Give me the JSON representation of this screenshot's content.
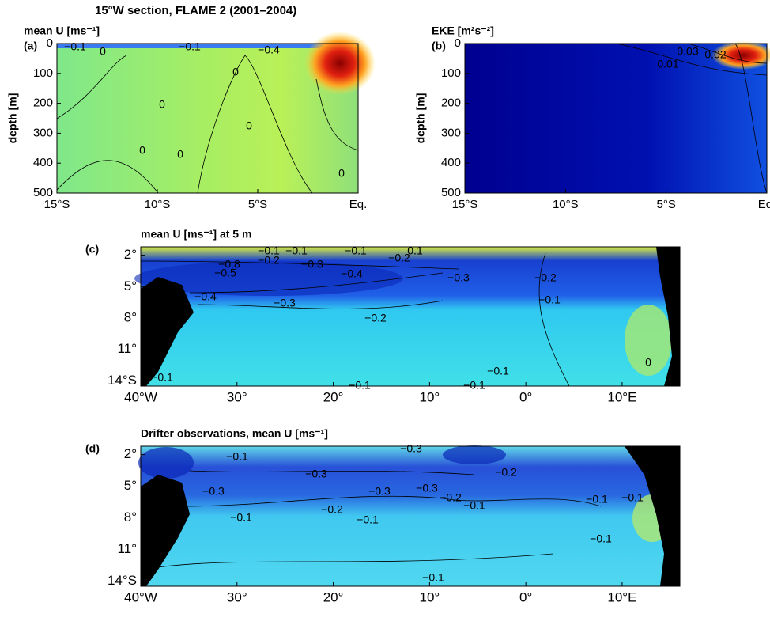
{
  "suptitle": "15°W section, FLAME 2 (2001–2004)",
  "chart_data": [
    {
      "type": "contour",
      "panel": "(a)",
      "title": "mean U [ms⁻¹]",
      "ylabel": "depth [m]",
      "xlim": [
        -15,
        0
      ],
      "xticks": [
        {
          "value": -15,
          "label": "15°S"
        },
        {
          "value": -10,
          "label": "10°S"
        },
        {
          "value": -5,
          "label": "5°S"
        },
        {
          "value": 0,
          "label": "Eq."
        }
      ],
      "ylim": [
        0,
        500
      ],
      "yticks": [
        0,
        100,
        200,
        300,
        400,
        500
      ],
      "contour_labels": [
        "−0.1",
        "0",
        "−0.1",
        "−0.4",
        "0",
        "0",
        "0",
        "0",
        "0",
        "0"
      ]
    },
    {
      "type": "contour",
      "panel": "(b)",
      "title": "EKE [m²s⁻²]",
      "ylabel": "depth [m]",
      "xlim": [
        -15,
        0
      ],
      "xticks": [
        {
          "value": -15,
          "label": "15°S"
        },
        {
          "value": -10,
          "label": "10°S"
        },
        {
          "value": -5,
          "label": "5°S"
        },
        {
          "value": 0,
          "label": "Eq."
        }
      ],
      "ylim": [
        0,
        500
      ],
      "yticks": [
        0,
        100,
        200,
        300,
        400,
        500
      ],
      "contour_labels": [
        "0.03",
        "0.02",
        "0.01"
      ]
    },
    {
      "type": "map",
      "panel": "(c)",
      "title": "mean U [ms⁻¹] at 5 m",
      "xlim": [
        -40,
        16
      ],
      "xticks": [
        {
          "value": -40,
          "label": "40°W"
        },
        {
          "value": -30,
          "label": "30°"
        },
        {
          "value": -20,
          "label": "20°"
        },
        {
          "value": -10,
          "label": "10°"
        },
        {
          "value": 0,
          "label": "0°"
        },
        {
          "value": 10,
          "label": "10°E"
        }
      ],
      "ylim": [
        -1.2,
        -14.5
      ],
      "yticks": [
        {
          "value": -2,
          "label": "2°"
        },
        {
          "value": -5,
          "label": "5°"
        },
        {
          "value": -8,
          "label": "8°"
        },
        {
          "value": -11,
          "label": "11°"
        },
        {
          "value": -14,
          "label": "14°S"
        }
      ],
      "contour_labels": [
        "−0.1",
        "−0.1",
        "−0.1",
        "0.1",
        "−0.8",
        "−0.2",
        "−0.3",
        "−0.2",
        "−0.5",
        "−0.4",
        "−0.3",
        "−0.2",
        "−0.4",
        "−0.3",
        "−0.2",
        "−0.1",
        "−0.1",
        "−0.1",
        "−0.1",
        "0",
        "−0.1"
      ]
    },
    {
      "type": "map",
      "panel": "(d)",
      "title": "Drifter observations, mean U [ms⁻¹]",
      "xlim": [
        -40,
        16
      ],
      "xticks": [
        {
          "value": -40,
          "label": "40°W"
        },
        {
          "value": -30,
          "label": "30°"
        },
        {
          "value": -20,
          "label": "20°"
        },
        {
          "value": -10,
          "label": "10°"
        },
        {
          "value": 0,
          "label": "0°"
        },
        {
          "value": 10,
          "label": "10°E"
        }
      ],
      "ylim": [
        -1.2,
        -14.5
      ],
      "yticks": [
        {
          "value": -2,
          "label": "2°"
        },
        {
          "value": -5,
          "label": "5°"
        },
        {
          "value": -8,
          "label": "8°"
        },
        {
          "value": -11,
          "label": "11°"
        },
        {
          "value": -14,
          "label": "14°S"
        }
      ],
      "contour_labels": [
        "−0.1",
        "−0.3",
        "−0.3",
        "−0.3",
        "−0.3",
        "−0.2",
        "−0.3",
        "−0.2",
        "−0.2",
        "−0.1",
        "−0.1",
        "−0.1",
        "−0.1",
        "−0.1",
        "−0.1",
        "−0.1"
      ]
    }
  ]
}
